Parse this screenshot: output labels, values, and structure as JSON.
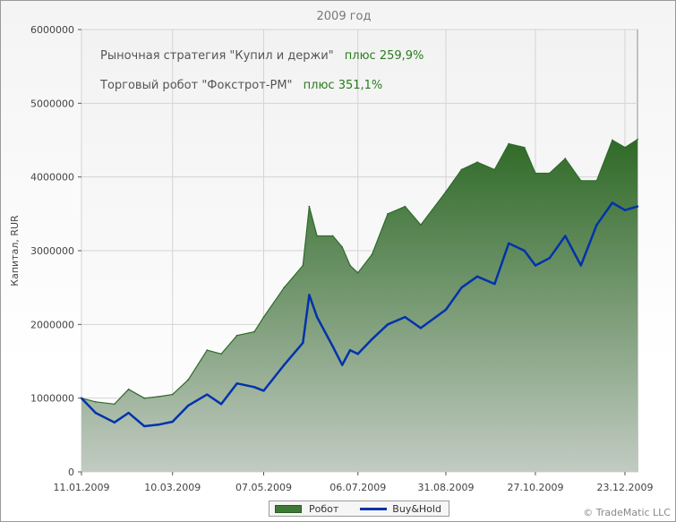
{
  "chart_data": {
    "type": "area",
    "title": "2009 год",
    "ylabel": "Капитал, RUR",
    "xlabel": "",
    "ylim": [
      0,
      6000000
    ],
    "y_ticks": [
      "0",
      "1000000",
      "2000000",
      "3000000",
      "4000000",
      "5000000",
      "6000000"
    ],
    "x_ticks": [
      "11.01.2009",
      "10.03.2009",
      "07.05.2009",
      "06.07.2009",
      "31.08.2009",
      "27.10.2009",
      "23.12.2009"
    ],
    "grid": true,
    "legend_position": "bottom",
    "annotations": [
      {
        "text": "Рыночная стратегия \"Купил и держи\"",
        "value": "плюс 259,9%"
      },
      {
        "text": "Торговый робот \"Фокстрот-РМ\"",
        "value": "плюс 351,1%"
      }
    ],
    "series": [
      {
        "name": "Робот",
        "color": "#2e6b2a",
        "points": [
          [
            "11.01.2009",
            1000000
          ],
          [
            "20.01.2009",
            950000
          ],
          [
            "01.02.2009",
            920000
          ],
          [
            "10.02.2009",
            1120000
          ],
          [
            "20.02.2009",
            1000000
          ],
          [
            "01.03.2009",
            1020000
          ],
          [
            "10.03.2009",
            1050000
          ],
          [
            "20.03.2009",
            1250000
          ],
          [
            "01.04.2009",
            1650000
          ],
          [
            "10.04.2009",
            1600000
          ],
          [
            "20.04.2009",
            1850000
          ],
          [
            "01.05.2009",
            1900000
          ],
          [
            "07.05.2009",
            2100000
          ],
          [
            "20.05.2009",
            2500000
          ],
          [
            "01.06.2009",
            2800000
          ],
          [
            "05.06.2009",
            3600000
          ],
          [
            "10.06.2009",
            3200000
          ],
          [
            "20.06.2009",
            3200000
          ],
          [
            "26.06.2009",
            3050000
          ],
          [
            "01.07.2009",
            2800000
          ],
          [
            "06.07.2009",
            2700000
          ],
          [
            "15.07.2009",
            2950000
          ],
          [
            "25.07.2009",
            3500000
          ],
          [
            "05.08.2009",
            3600000
          ],
          [
            "15.08.2009",
            3350000
          ],
          [
            "31.08.2009",
            3800000
          ],
          [
            "10.09.2009",
            4100000
          ],
          [
            "20.09.2009",
            4200000
          ],
          [
            "01.10.2009",
            4100000
          ],
          [
            "10.10.2009",
            4450000
          ],
          [
            "20.10.2009",
            4400000
          ],
          [
            "27.10.2009",
            4050000
          ],
          [
            "05.11.2009",
            4050000
          ],
          [
            "15.11.2009",
            4250000
          ],
          [
            "25.11.2009",
            3950000
          ],
          [
            "05.12.2009",
            3950000
          ],
          [
            "15.12.2009",
            4500000
          ],
          [
            "23.12.2009",
            4400000
          ],
          [
            "31.12.2009",
            4510000
          ]
        ]
      },
      {
        "name": "Buy&Hold",
        "color": "#0033aa",
        "points": [
          [
            "11.01.2009",
            1000000
          ],
          [
            "20.01.2009",
            800000
          ],
          [
            "01.02.2009",
            670000
          ],
          [
            "10.02.2009",
            800000
          ],
          [
            "20.02.2009",
            620000
          ],
          [
            "01.03.2009",
            640000
          ],
          [
            "10.03.2009",
            680000
          ],
          [
            "20.03.2009",
            900000
          ],
          [
            "01.04.2009",
            1050000
          ],
          [
            "10.04.2009",
            920000
          ],
          [
            "20.04.2009",
            1200000
          ],
          [
            "01.05.2009",
            1150000
          ],
          [
            "07.05.2009",
            1100000
          ],
          [
            "20.05.2009",
            1450000
          ],
          [
            "01.06.2009",
            1750000
          ],
          [
            "05.06.2009",
            2400000
          ],
          [
            "10.06.2009",
            2100000
          ],
          [
            "20.06.2009",
            1700000
          ],
          [
            "26.06.2009",
            1450000
          ],
          [
            "01.07.2009",
            1650000
          ],
          [
            "06.07.2009",
            1600000
          ],
          [
            "15.07.2009",
            1800000
          ],
          [
            "25.07.2009",
            2000000
          ],
          [
            "05.08.2009",
            2100000
          ],
          [
            "15.08.2009",
            1950000
          ],
          [
            "31.08.2009",
            2200000
          ],
          [
            "10.09.2009",
            2500000
          ],
          [
            "20.09.2009",
            2650000
          ],
          [
            "01.10.2009",
            2550000
          ],
          [
            "10.10.2009",
            3100000
          ],
          [
            "20.10.2009",
            3000000
          ],
          [
            "27.10.2009",
            2800000
          ],
          [
            "05.11.2009",
            2900000
          ],
          [
            "15.11.2009",
            3200000
          ],
          [
            "25.11.2009",
            2800000
          ],
          [
            "05.12.2009",
            3350000
          ],
          [
            "15.12.2009",
            3650000
          ],
          [
            "23.12.2009",
            3550000
          ],
          [
            "31.12.2009",
            3600000
          ]
        ]
      }
    ]
  },
  "legend": {
    "robot_label": "Робот",
    "bh_label": "Buy&Hold"
  },
  "footer": {
    "copyright": "© TradeMatic LLC"
  }
}
